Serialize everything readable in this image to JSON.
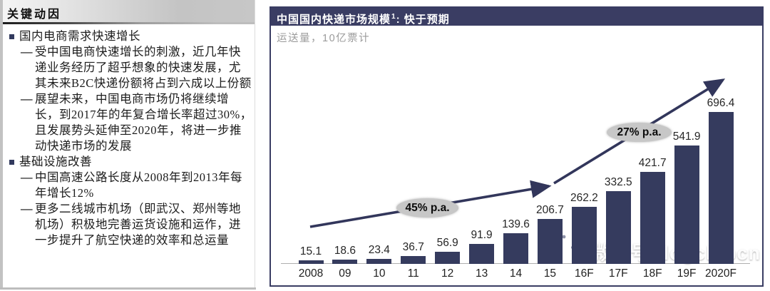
{
  "left_panel": {
    "heading": "关键动因",
    "items": [
      {
        "level": "bullet",
        "text": "国内电商需求快速增长"
      },
      {
        "level": "dash",
        "text": "受中国电商快速增长的刺激，近几年快递业务经历了超乎想象的快速发展，尤其未来B2C快递份额将占到六成以上份额"
      },
      {
        "level": "dash",
        "text": "展望未来，中国电商市场仍将继续增长，到2017年的年复合增长率超过30%，且发展势头延伸至2020年，将进一步推动快递市场的发展"
      },
      {
        "level": "bullet",
        "text": "基础设施改善"
      },
      {
        "level": "dash",
        "text": "中国高速公路长度从2008年到2013年每年增长12%"
      },
      {
        "level": "dash",
        "text": "更多二线城市机场（即武汉、郑州等地机场）积极地完善运货设施和运作，进一步提升了航空快递的效率和总运量"
      }
    ]
  },
  "chart_panel": {
    "title_main": "中国国内快递市场规模",
    "title_footnote_marker": "1",
    "title_suffix": ": 快于预期",
    "subtitle": "运送量，10亿票计",
    "annotations": {
      "first": "45% p.a.",
      "second": "27% p.a."
    }
  },
  "watermark": {
    "icon": "wechat-icon",
    "text": "微信号: logclubcn"
  },
  "colors": {
    "navy": "#3a3d63",
    "bar_navy": "#353b5e",
    "arrow_navy": "#32365b",
    "oval_gray": "#c7c7c7",
    "subtitle_gray": "#9b9b9b"
  },
  "chart_data": {
    "type": "bar",
    "title": "中国国内快递市场规模1: 快于预期",
    "subtitle": "运送量，10亿票计",
    "xlabel": "",
    "ylabel": "运送量（10亿票）",
    "categories": [
      "2008",
      "09",
      "10",
      "11",
      "12",
      "13",
      "14",
      "15",
      "16F",
      "17F",
      "18F",
      "19F",
      "2020F"
    ],
    "values": [
      15.1,
      18.6,
      23.4,
      36.7,
      56.9,
      91.9,
      139.6,
      206.7,
      262.2,
      332.5,
      421.7,
      541.9,
      696.4
    ],
    "ylim": [
      0,
      750
    ],
    "grid": false,
    "legend": false,
    "bar_color": "#353b5e",
    "annotations": [
      {
        "text": "45% p.a.",
        "span_categories": [
          "2008",
          "15"
        ],
        "shape": "gray-oval-with-arrow"
      },
      {
        "text": "27% p.a.",
        "span_categories": [
          "15",
          "2020F"
        ],
        "shape": "gray-oval-with-arrow"
      }
    ]
  }
}
